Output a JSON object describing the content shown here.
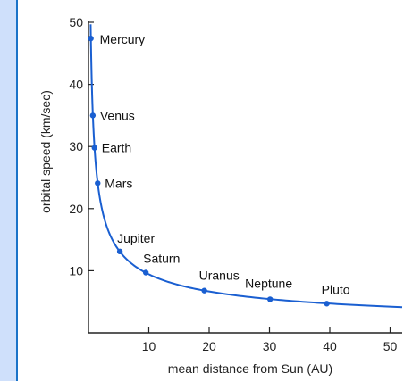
{
  "chart_data": {
    "type": "line",
    "title": "",
    "xlabel": "mean distance from Sun (AU)",
    "ylabel": "orbital speed (km/sec)",
    "xlim": [
      0,
      52
    ],
    "ylim": [
      0,
      50
    ],
    "x_ticks": [
      10,
      20,
      30,
      40,
      50
    ],
    "y_ticks": [
      10,
      20,
      30,
      40,
      50
    ],
    "grid": false,
    "line_color": "#1a5fd1",
    "points": [
      {
        "name": "Mercury",
        "x": 0.39,
        "y": 47.4
      },
      {
        "name": "Venus",
        "x": 0.72,
        "y": 35.0
      },
      {
        "name": "Earth",
        "x": 1.0,
        "y": 29.8
      },
      {
        "name": "Mars",
        "x": 1.52,
        "y": 24.1
      },
      {
        "name": "Jupiter",
        "x": 5.2,
        "y": 13.1
      },
      {
        "name": "Saturn",
        "x": 9.5,
        "y": 9.7
      },
      {
        "name": "Uranus",
        "x": 19.2,
        "y": 6.8
      },
      {
        "name": "Neptune",
        "x": 30.1,
        "y": 5.4
      },
      {
        "name": "Pluto",
        "x": 39.5,
        "y": 4.7
      }
    ]
  }
}
